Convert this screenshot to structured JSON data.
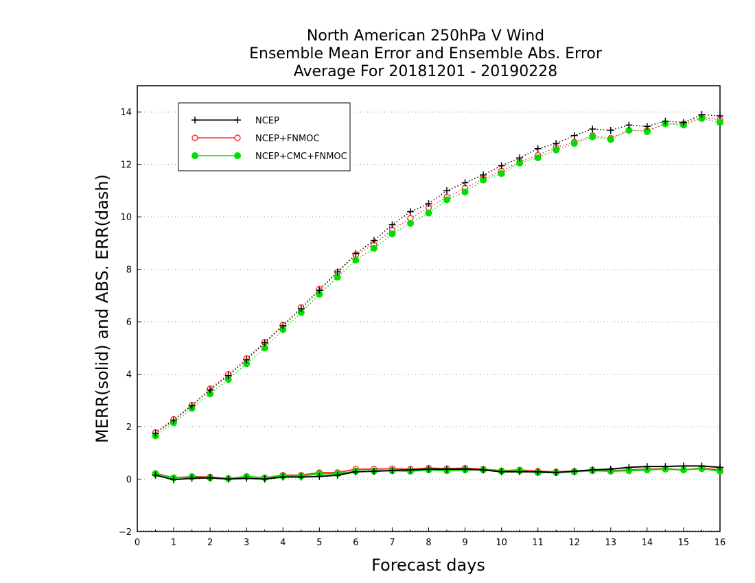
{
  "chart_data": {
    "type": "line",
    "title": [
      "North American 250hPa V Wind",
      "Ensemble Mean Error and Ensemble Abs. Error",
      "Average For 20181201 - 20190228"
    ],
    "xlabel": "Forecast days",
    "ylabel": "MERR(solid) and ABS. ERR(dash)",
    "xlim": [
      0,
      16
    ],
    "ylim": [
      -2,
      15
    ],
    "xticks": [
      "0",
      "1",
      "2",
      "3",
      "4",
      "5",
      "6",
      "7",
      "8",
      "9",
      "10",
      "11",
      "12",
      "13",
      "14",
      "15",
      "16"
    ],
    "yticks": [
      "−2",
      "0",
      "2",
      "4",
      "6",
      "8",
      "10",
      "12",
      "14"
    ],
    "grid": "horizontal dotted",
    "legend_position": "top-left",
    "x": [
      0.5,
      1,
      1.5,
      2,
      2.5,
      3,
      3.5,
      4,
      4.5,
      5,
      5.5,
      6,
      6.5,
      7,
      7.5,
      8,
      8.5,
      9,
      9.5,
      10,
      10.5,
      11,
      11.5,
      12,
      12.5,
      13,
      13.5,
      14,
      14.5,
      15,
      15.5,
      16
    ],
    "series": [
      {
        "name": "NCEP",
        "color": "#000000",
        "marker": "plus",
        "merr": [
          0.15,
          -0.02,
          0.03,
          0.05,
          0.0,
          0.03,
          0.0,
          0.08,
          0.08,
          0.1,
          0.15,
          0.28,
          0.3,
          0.33,
          0.35,
          0.38,
          0.38,
          0.38,
          0.35,
          0.28,
          0.28,
          0.28,
          0.25,
          0.3,
          0.35,
          0.38,
          0.45,
          0.48,
          0.48,
          0.5,
          0.5,
          0.45
        ],
        "abs_err": [
          1.75,
          2.25,
          2.8,
          3.4,
          3.95,
          4.55,
          5.2,
          5.85,
          6.5,
          7.2,
          7.9,
          8.6,
          9.1,
          9.7,
          10.2,
          10.5,
          11.0,
          11.3,
          11.6,
          11.95,
          12.25,
          12.6,
          12.8,
          13.1,
          13.35,
          13.3,
          13.5,
          13.45,
          13.65,
          13.6,
          13.9,
          13.85
        ]
      },
      {
        "name": "NCEP+FNMOC",
        "color": "#ff3333",
        "marker": "open-circle",
        "merr": [
          0.22,
          0.05,
          0.1,
          0.08,
          0.02,
          0.1,
          0.05,
          0.15,
          0.15,
          0.25,
          0.25,
          0.38,
          0.38,
          0.4,
          0.38,
          0.42,
          0.4,
          0.42,
          0.38,
          0.32,
          0.35,
          0.3,
          0.28,
          0.3,
          0.35,
          0.32,
          0.35,
          0.38,
          0.4,
          0.35,
          0.42,
          0.35
        ],
        "abs_err": [
          1.78,
          2.28,
          2.82,
          3.45,
          4.0,
          4.6,
          5.22,
          5.88,
          6.55,
          7.25,
          7.9,
          8.55,
          8.95,
          9.5,
          9.95,
          10.35,
          10.75,
          11.1,
          11.45,
          11.75,
          12.1,
          12.35,
          12.65,
          12.85,
          13.1,
          13.0,
          13.3,
          13.3,
          13.55,
          13.55,
          13.8,
          13.7
        ]
      },
      {
        "name": "NCEP+CMC+FNMOC",
        "color": "#00dd00",
        "marker": "filled-circle",
        "merr": [
          0.2,
          0.05,
          0.08,
          0.05,
          0.02,
          0.1,
          0.05,
          0.12,
          0.12,
          0.2,
          0.2,
          0.3,
          0.3,
          0.32,
          0.3,
          0.35,
          0.32,
          0.35,
          0.35,
          0.3,
          0.32,
          0.25,
          0.25,
          0.28,
          0.32,
          0.3,
          0.32,
          0.35,
          0.38,
          0.35,
          0.4,
          0.3
        ],
        "abs_err": [
          1.65,
          2.15,
          2.7,
          3.25,
          3.8,
          4.4,
          5.0,
          5.7,
          6.35,
          7.05,
          7.7,
          8.35,
          8.8,
          9.35,
          9.75,
          10.15,
          10.65,
          10.95,
          11.4,
          11.65,
          12.05,
          12.25,
          12.55,
          12.8,
          13.05,
          12.95,
          13.3,
          13.25,
          13.55,
          13.5,
          13.75,
          13.6
        ]
      }
    ]
  }
}
